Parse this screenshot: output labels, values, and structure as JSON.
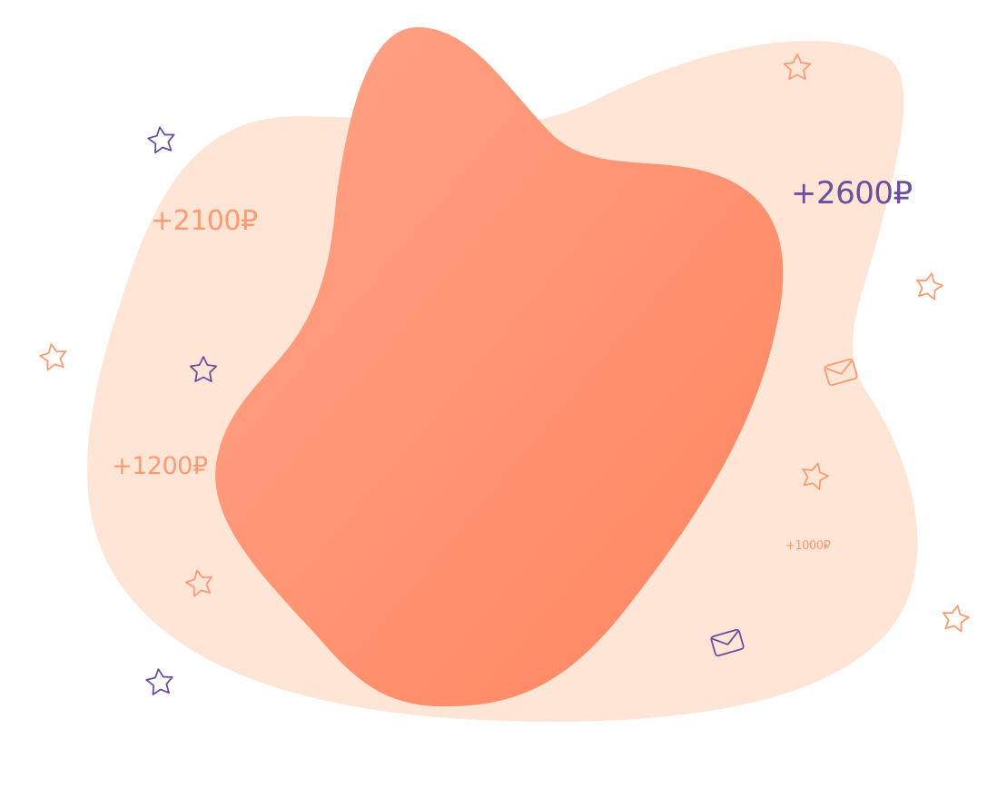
{
  "colors": {
    "background": "#ffffff",
    "back_blob": "#ffe5d6",
    "front_blob_start": "#ffa386",
    "front_blob_end": "#ff8560",
    "accent_orange": "#ff9a72",
    "accent_purple": "#6b4f9e"
  },
  "amounts": {
    "a2100": "+2100₽",
    "a2600": "+2600₽",
    "a1200": "+1200₽",
    "a1000": "+1000₽"
  },
  "icons": [
    "star-outline-icon",
    "envelope-outline-icon"
  ]
}
